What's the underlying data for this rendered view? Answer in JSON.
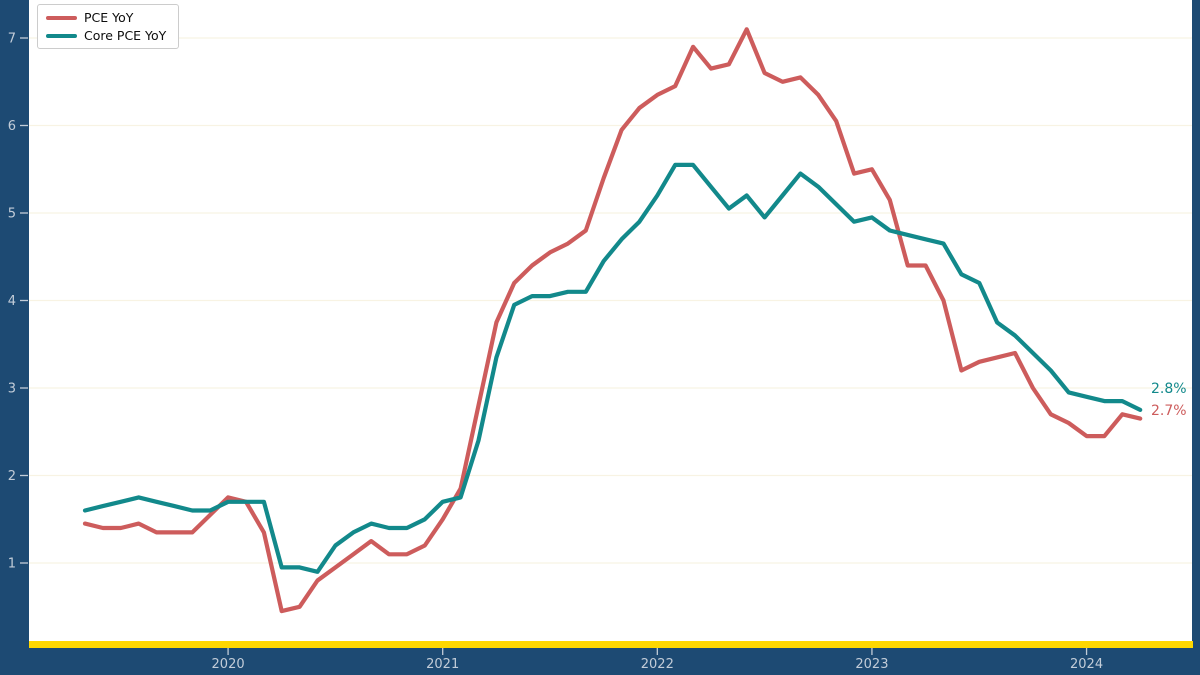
{
  "figure": {
    "background_color": "#1d4a73",
    "plot_background": "#ffffff",
    "grid_color": "#f8f3e3",
    "baseline_color": "#ffd700",
    "tick_color": "#c2ccd8",
    "tick_label_color": "#c2ccd8",
    "legend": {
      "background": "#ffffff",
      "border_color": "#cccccc",
      "items": [
        {
          "label": "PCE YoY",
          "color": "#cd5c5c"
        },
        {
          "label": "Core PCE YoY",
          "color": "#12898b"
        }
      ]
    }
  },
  "chart_data": {
    "type": "line",
    "title": "",
    "xlabel": "",
    "ylabel": "",
    "grid": "horizontal-faint",
    "legend_position": "upper-left",
    "x_tick_labels": [
      "2020",
      "2021",
      "2022",
      "2023",
      "2024"
    ],
    "y_tick_labels": [
      "1",
      "2",
      "3",
      "4",
      "5",
      "6",
      "7"
    ],
    "ylim": [
      0,
      7.35
    ],
    "x_range_months": [
      "2019-05",
      "2024-04"
    ],
    "months": [
      "2019-05",
      "2019-06",
      "2019-07",
      "2019-08",
      "2019-09",
      "2019-10",
      "2019-11",
      "2019-12",
      "2020-01",
      "2020-02",
      "2020-03",
      "2020-04",
      "2020-05",
      "2020-06",
      "2020-07",
      "2020-08",
      "2020-09",
      "2020-10",
      "2020-11",
      "2020-12",
      "2021-01",
      "2021-02",
      "2021-03",
      "2021-04",
      "2021-05",
      "2021-06",
      "2021-07",
      "2021-08",
      "2021-09",
      "2021-10",
      "2021-11",
      "2021-12",
      "2022-01",
      "2022-02",
      "2022-03",
      "2022-04",
      "2022-05",
      "2022-06",
      "2022-07",
      "2022-08",
      "2022-09",
      "2022-10",
      "2022-11",
      "2022-12",
      "2023-01",
      "2023-02",
      "2023-03",
      "2023-04",
      "2023-05",
      "2023-06",
      "2023-07",
      "2023-08",
      "2023-09",
      "2023-10",
      "2023-11",
      "2023-12",
      "2024-01",
      "2024-02",
      "2024-03",
      "2024-04"
    ],
    "series": [
      {
        "name": "PCE YoY",
        "color": "#cd5c5c",
        "end_label": "2.7%",
        "values": [
          1.45,
          1.4,
          1.4,
          1.45,
          1.35,
          1.35,
          1.35,
          1.55,
          1.75,
          1.7,
          1.35,
          0.45,
          0.5,
          0.8,
          0.95,
          1.1,
          1.25,
          1.1,
          1.1,
          1.2,
          1.5,
          1.85,
          2.8,
          3.75,
          4.2,
          4.4,
          4.55,
          4.65,
          4.8,
          5.4,
          5.95,
          6.2,
          6.35,
          6.45,
          6.9,
          6.65,
          6.7,
          7.1,
          6.6,
          6.5,
          6.55,
          6.35,
          6.05,
          5.45,
          5.5,
          5.15,
          4.4,
          4.4,
          4.0,
          3.2,
          3.3,
          3.35,
          3.4,
          3.0,
          2.7,
          2.6,
          2.45,
          2.45,
          2.7,
          2.65
        ]
      },
      {
        "name": "Core PCE YoY",
        "color": "#12898b",
        "end_label": "2.8%",
        "values": [
          1.6,
          1.65,
          1.7,
          1.75,
          1.7,
          1.65,
          1.6,
          1.6,
          1.7,
          1.7,
          1.7,
          0.95,
          0.95,
          0.9,
          1.2,
          1.35,
          1.45,
          1.4,
          1.4,
          1.5,
          1.7,
          1.75,
          2.4,
          3.35,
          3.95,
          4.05,
          4.05,
          4.1,
          4.1,
          4.45,
          4.7,
          4.9,
          5.2,
          5.55,
          5.55,
          5.3,
          5.05,
          5.2,
          4.95,
          5.2,
          5.45,
          5.3,
          5.1,
          4.9,
          4.95,
          4.8,
          4.75,
          4.7,
          4.65,
          4.3,
          4.2,
          3.75,
          3.6,
          3.4,
          3.2,
          2.95,
          2.9,
          2.85,
          2.85,
          2.75
        ]
      }
    ]
  }
}
